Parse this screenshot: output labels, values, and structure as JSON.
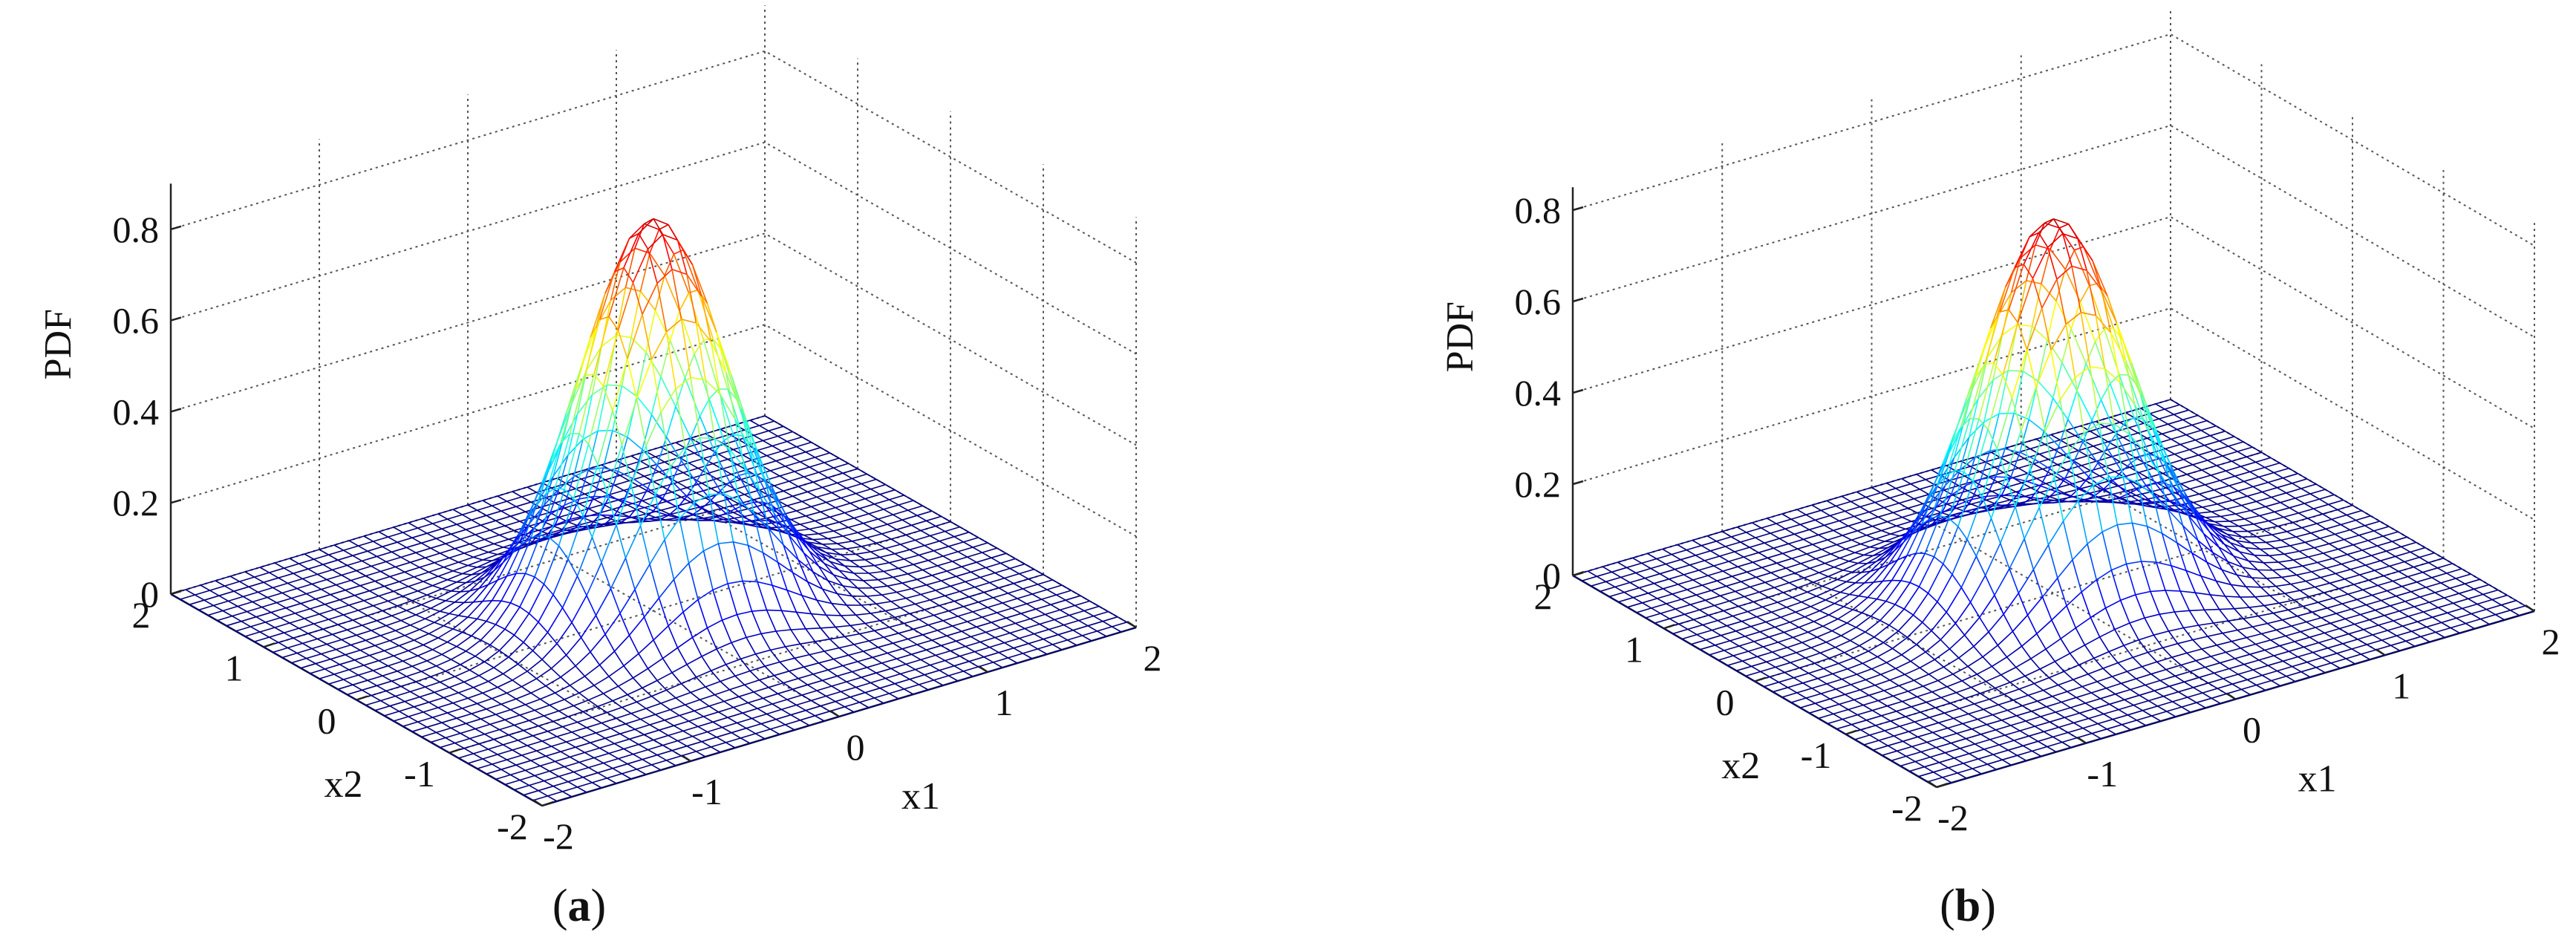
{
  "chart_data": [
    {
      "id": "a",
      "type": "surface",
      "caption": {
        "open": "(",
        "letter": "a",
        "close": ")"
      },
      "zlabel": "PDF",
      "xlabel": "x1",
      "ylabel": "x2",
      "xlim": [
        -2,
        2
      ],
      "ylim": [
        -2,
        2
      ],
      "zlim": [
        0,
        0.9
      ],
      "xticks": [
        "-2",
        "-1",
        "0",
        "1",
        "2"
      ],
      "yticks": [
        "-2",
        "-1",
        "0",
        "1",
        "2"
      ],
      "zticks": [
        "0",
        "0.2",
        "0.4",
        "0.6",
        "0.8"
      ],
      "grid": true,
      "colormap": "jet",
      "surface": {
        "function": "bivariate gaussian",
        "mean": [
          0,
          0
        ],
        "sigma": 0.43,
        "peak": 0.86,
        "grid_size": 41
      }
    },
    {
      "id": "b",
      "type": "surface",
      "caption": {
        "open": "(",
        "letter": "b",
        "close": ")"
      },
      "zlabel": "PDF",
      "xlabel": "x1",
      "ylabel": "x2",
      "xlim": [
        -2,
        2
      ],
      "ylim": [
        -2,
        2
      ],
      "zlim": [
        0,
        0.85
      ],
      "xticks": [
        "-2",
        "-1",
        "0",
        "1",
        "2"
      ],
      "yticks": [
        "-2",
        "-1",
        "0",
        "1",
        "2"
      ],
      "zticks": [
        "0",
        "0.2",
        "0.4",
        "0.6",
        "0.8"
      ],
      "grid": true,
      "colormap": "jet",
      "surface": {
        "function": "bivariate gaussian",
        "mean": [
          0,
          0
        ],
        "sigma": 0.44,
        "peak": 0.82,
        "grid_size": 41
      }
    }
  ]
}
